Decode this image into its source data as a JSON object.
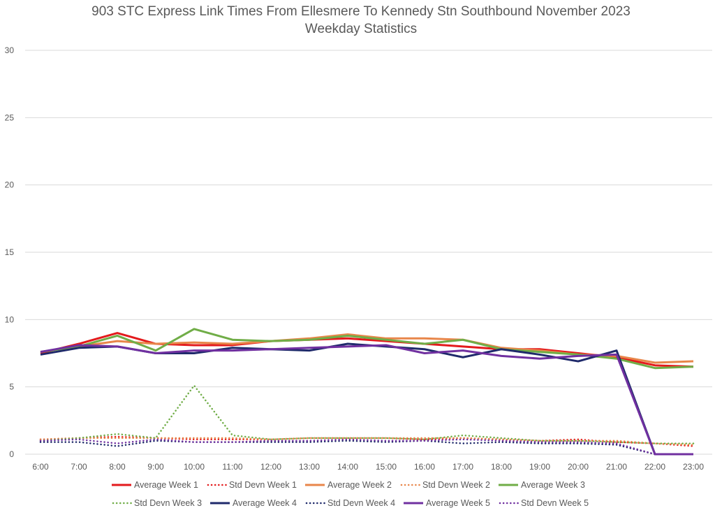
{
  "chart_data": {
    "type": "line",
    "title": "903 STC Express Link Times From Ellesmere To Kennedy Stn Southbound November 2023",
    "subtitle": "Weekday Statistics",
    "xlabel": "",
    "ylabel": "",
    "ylim": [
      0,
      30
    ],
    "yticks": [
      0,
      5,
      10,
      15,
      20,
      25,
      30
    ],
    "grid": true,
    "legend_position": "bottom",
    "categories": [
      "6:00",
      "7:00",
      "8:00",
      "9:00",
      "10:00",
      "11:00",
      "12:00",
      "13:00",
      "14:00",
      "15:00",
      "16:00",
      "17:00",
      "18:00",
      "19:00",
      "20:00",
      "21:00",
      "22:00",
      "23:00"
    ],
    "series": [
      {
        "name": "Average Week 1",
        "style": "solid",
        "color": "#e31a1c",
        "values": [
          7.5,
          8.2,
          9.0,
          8.2,
          8.1,
          8.1,
          8.4,
          8.5,
          8.6,
          8.4,
          8.2,
          8.0,
          7.8,
          7.8,
          7.5,
          7.2,
          6.6,
          6.5
        ]
      },
      {
        "name": "Std Devn Week 1",
        "style": "dotted",
        "color": "#e31a1c",
        "values": [
          1.1,
          1.2,
          1.3,
          1.2,
          1.1,
          1.1,
          1.1,
          1.2,
          1.2,
          1.2,
          1.1,
          1.2,
          1.1,
          1.0,
          1.1,
          0.9,
          0.8,
          0.6
        ]
      },
      {
        "name": "Average Week 2",
        "style": "solid",
        "color": "#e8864a",
        "values": [
          7.6,
          8.0,
          8.4,
          8.2,
          8.3,
          8.2,
          8.4,
          8.6,
          8.9,
          8.6,
          8.6,
          8.5,
          7.9,
          7.7,
          7.4,
          7.3,
          6.8,
          6.9
        ]
      },
      {
        "name": "Std Devn Week 2",
        "style": "dotted",
        "color": "#e8864a",
        "values": [
          1.1,
          1.2,
          1.2,
          1.2,
          1.2,
          1.2,
          1.1,
          1.2,
          1.2,
          1.2,
          1.2,
          1.2,
          1.1,
          1.0,
          1.0,
          1.0,
          0.8,
          0.7
        ]
      },
      {
        "name": "Average Week 3",
        "style": "solid",
        "color": "#70ad47",
        "values": [
          7.6,
          8.0,
          8.8,
          7.7,
          9.3,
          8.5,
          8.4,
          8.5,
          8.8,
          8.5,
          8.2,
          8.5,
          7.8,
          7.6,
          7.4,
          7.1,
          6.4,
          6.5
        ]
      },
      {
        "name": "Std Devn Week 3",
        "style": "dotted",
        "color": "#70ad47",
        "values": [
          1.0,
          1.2,
          1.5,
          1.2,
          5.1,
          1.4,
          1.1,
          1.2,
          1.2,
          1.2,
          1.1,
          1.4,
          1.2,
          1.0,
          1.0,
          0.9,
          0.8,
          0.8
        ]
      },
      {
        "name": "Average Week 4",
        "style": "solid",
        "color": "#1f2a6b",
        "values": [
          7.4,
          7.9,
          8.0,
          7.5,
          7.5,
          7.9,
          7.8,
          7.7,
          8.2,
          8.0,
          7.8,
          7.2,
          7.8,
          7.4,
          6.9,
          7.7,
          0,
          0
        ]
      },
      {
        "name": "Std Devn Week 4",
        "style": "dotted",
        "color": "#1f2a6b",
        "values": [
          0.9,
          0.9,
          0.6,
          1.0,
          0.9,
          0.9,
          0.9,
          0.9,
          1.0,
          0.9,
          1.0,
          0.8,
          0.9,
          0.8,
          0.8,
          0.7,
          0,
          0
        ]
      },
      {
        "name": "Average Week 5",
        "style": "solid",
        "color": "#7030a0",
        "values": [
          7.6,
          8.1,
          8.0,
          7.5,
          7.7,
          7.7,
          7.8,
          7.9,
          8.0,
          8.1,
          7.5,
          7.7,
          7.3,
          7.1,
          7.3,
          7.4,
          0,
          0
        ]
      },
      {
        "name": "Std Devn Week 5",
        "style": "dotted",
        "color": "#7030a0",
        "values": [
          1.0,
          1.1,
          0.8,
          1.1,
          0.9,
          0.9,
          1.0,
          1.0,
          1.1,
          1.0,
          1.0,
          1.1,
          1.0,
          0.9,
          0.9,
          0.8,
          0,
          0
        ]
      }
    ]
  }
}
